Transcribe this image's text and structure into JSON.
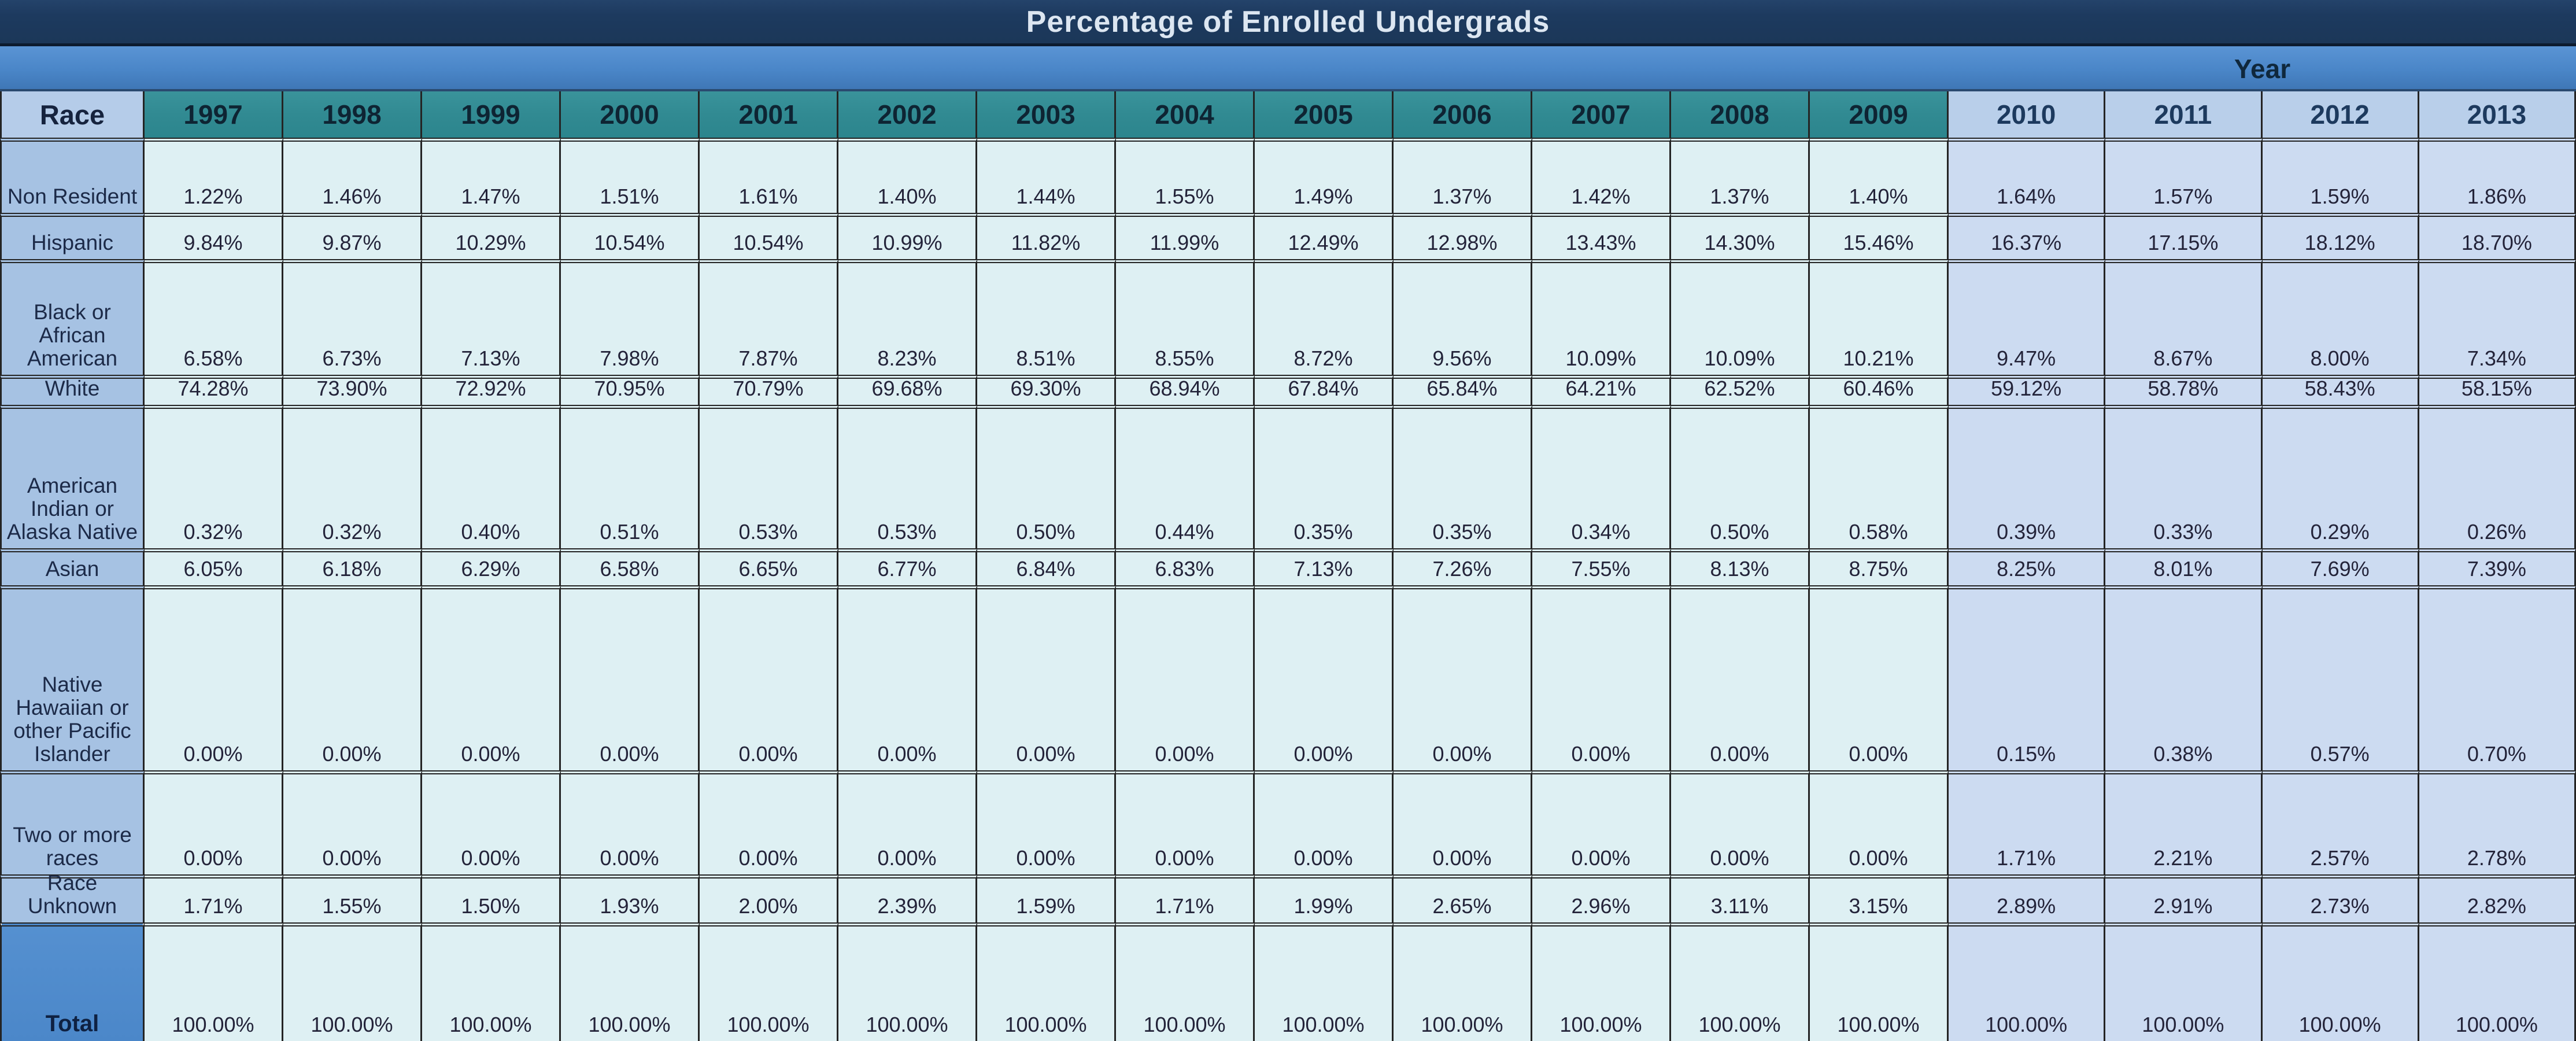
{
  "title": "Percentage of Enrolled Undergrads",
  "year_band_label": "Year",
  "race_header": "Race",
  "years": [
    "1997",
    "1998",
    "1999",
    "2000",
    "2001",
    "2002",
    "2003",
    "2004",
    "2005",
    "2006",
    "2007",
    "2008",
    "2009",
    "2010",
    "2011",
    "2012",
    "2013"
  ],
  "rows": [
    {
      "label": "Non Resident",
      "markers": false,
      "is_total": false,
      "values": [
        "1.22%",
        "1.46%",
        "1.47%",
        "1.51%",
        "1.61%",
        "1.40%",
        "1.44%",
        "1.55%",
        "1.49%",
        "1.37%",
        "1.42%",
        "1.37%",
        "1.40%",
        "1.64%",
        "1.57%",
        "1.59%",
        "1.86%"
      ]
    },
    {
      "label": "Hispanic",
      "markers": false,
      "is_total": false,
      "values": [
        "9.84%",
        "9.87%",
        "10.29%",
        "10.54%",
        "10.54%",
        "10.99%",
        "11.82%",
        "11.99%",
        "12.49%",
        "12.98%",
        "13.43%",
        "14.30%",
        "15.46%",
        "16.37%",
        "17.15%",
        "18.12%",
        "18.70%"
      ]
    },
    {
      "label": "Black or African American",
      "markers": false,
      "is_total": false,
      "values": [
        "6.58%",
        "6.73%",
        "7.13%",
        "7.98%",
        "7.87%",
        "8.23%",
        "8.51%",
        "8.55%",
        "8.72%",
        "9.56%",
        "10.09%",
        "10.09%",
        "10.21%",
        "9.47%",
        "8.67%",
        "8.00%",
        "7.34%"
      ]
    },
    {
      "label": "White",
      "markers": false,
      "is_total": false,
      "values": [
        "74.28%",
        "73.90%",
        "72.92%",
        "70.95%",
        "70.79%",
        "69.68%",
        "69.30%",
        "68.94%",
        "67.84%",
        "65.84%",
        "64.21%",
        "62.52%",
        "60.46%",
        "59.12%",
        "58.78%",
        "58.43%",
        "58.15%"
      ]
    },
    {
      "label": "American Indian or Alaska Native",
      "markers": false,
      "is_total": false,
      "values": [
        "0.32%",
        "0.32%",
        "0.40%",
        "0.51%",
        "0.53%",
        "0.53%",
        "0.50%",
        "0.44%",
        "0.35%",
        "0.35%",
        "0.34%",
        "0.50%",
        "0.58%",
        "0.39%",
        "0.33%",
        "0.29%",
        "0.26%"
      ]
    },
    {
      "label": "Asian",
      "markers": false,
      "is_total": false,
      "values": [
        "6.05%",
        "6.18%",
        "6.29%",
        "6.58%",
        "6.65%",
        "6.77%",
        "6.84%",
        "6.83%",
        "7.13%",
        "7.26%",
        "7.55%",
        "8.13%",
        "8.75%",
        "8.25%",
        "8.01%",
        "7.69%",
        "7.39%"
      ]
    },
    {
      "label": "Native Hawaiian or other Pacific Islander",
      "markers": true,
      "is_total": false,
      "values": [
        "0.00%",
        "0.00%",
        "0.00%",
        "0.00%",
        "0.00%",
        "0.00%",
        "0.00%",
        "0.00%",
        "0.00%",
        "0.00%",
        "0.00%",
        "0.00%",
        "0.00%",
        "0.15%",
        "0.38%",
        "0.57%",
        "0.70%"
      ]
    },
    {
      "label": "Two or more races",
      "markers": true,
      "is_total": false,
      "values": [
        "0.00%",
        "0.00%",
        "0.00%",
        "0.00%",
        "0.00%",
        "0.00%",
        "0.00%",
        "0.00%",
        "0.00%",
        "0.00%",
        "0.00%",
        "0.00%",
        "0.00%",
        "1.71%",
        "2.21%",
        "2.57%",
        "2.78%"
      ]
    },
    {
      "label": "Race Unknown",
      "markers": false,
      "is_total": false,
      "values": [
        "1.71%",
        "1.55%",
        "1.50%",
        "1.93%",
        "2.00%",
        "2.39%",
        "1.59%",
        "1.71%",
        "1.99%",
        "2.65%",
        "2.96%",
        "3.11%",
        "3.15%",
        "2.89%",
        "2.91%",
        "2.73%",
        "2.82%"
      ]
    },
    {
      "label": "Total",
      "markers": false,
      "is_total": true,
      "values": [
        "100.00%",
        "100.00%",
        "100.00%",
        "100.00%",
        "100.00%",
        "100.00%",
        "100.00%",
        "100.00%",
        "100.00%",
        "100.00%",
        "100.00%",
        "100.00%",
        "100.00%",
        "100.00%",
        "100.00%",
        "100.00%",
        "100.00%"
      ]
    }
  ],
  "colors": {
    "title_bg": "#1d3a5f",
    "title_text": "#dce6f1",
    "year_band_bg": "#4a86c8",
    "teal_header_bg": "#318a92",
    "right_header_bg": "#b9cfea",
    "race_header_bg": "#b5cce9",
    "row_label_bg": "#a6c2e3",
    "data_cell_left_bg": "#def0f3",
    "data_cell_right_bg": "#ccdbf1",
    "total_label_bg": "#4b87c9",
    "grid_border": "#242424",
    "error_marker_green": "#1ca02c"
  }
}
